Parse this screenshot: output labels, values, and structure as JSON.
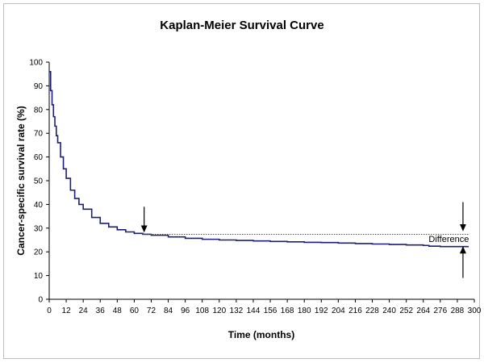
{
  "chart_data": {
    "type": "line",
    "title": "Kaplan-Meier Survival Curve",
    "xlabel": "Time (months)",
    "ylabel": "Cancer-specific survival rate (%)",
    "xlim": [
      0,
      300
    ],
    "ylim": [
      0,
      100
    ],
    "x_ticks": [
      "0",
      "12",
      "24",
      "36",
      "48",
      "60",
      "72",
      "84",
      "96",
      "108",
      "120",
      "132",
      "144",
      "156",
      "168",
      "180",
      "192",
      "204",
      "216",
      "228",
      "240",
      "252",
      "264",
      "276",
      "288",
      "300"
    ],
    "y_ticks": [
      "0",
      "10",
      "20",
      "30",
      "40",
      "50",
      "60",
      "70",
      "80",
      "90",
      "100"
    ],
    "grid": false,
    "legend": "none",
    "series": [
      {
        "style": "step",
        "color": "#1b1f7a",
        "x": [
          0,
          1,
          2,
          3,
          4,
          5,
          6,
          8,
          10,
          12,
          15,
          18,
          21,
          24,
          30,
          36,
          42,
          48,
          54,
          60,
          66,
          72,
          84,
          96,
          108,
          120,
          132,
          144,
          156,
          168,
          180,
          192,
          204,
          216,
          228,
          240,
          252,
          264,
          268,
          276,
          288,
          296
        ],
        "y": [
          96,
          88,
          82,
          77,
          73,
          69,
          66,
          60,
          55,
          51,
          46,
          42.5,
          40,
          38,
          34.5,
          32,
          30.5,
          29.3,
          28.4,
          27.8,
          27.4,
          27,
          26.3,
          25.7,
          25.3,
          25,
          24.8,
          24.6,
          24.4,
          24.2,
          24,
          23.9,
          23.7,
          23.5,
          23.3,
          23.1,
          22.9,
          22.7,
          22.4,
          22.2,
          22.2,
          22.2
        ]
      },
      {
        "style": "dotted",
        "color": "#555555",
        "x": [
          66,
          296
        ],
        "y": [
          27.4,
          27.4
        ]
      }
    ],
    "annotations": [
      {
        "type": "arrow-down",
        "x": 67,
        "y_from": 39,
        "y_to": 29.5
      },
      {
        "type": "arrow-down",
        "x": 292,
        "y_from": 41,
        "y_to": 30
      },
      {
        "type": "arrow-up",
        "x": 292,
        "y_from": 9,
        "y_to": 21
      },
      {
        "type": "text",
        "text": "Difference",
        "x": 282,
        "y": 24.2
      }
    ]
  }
}
